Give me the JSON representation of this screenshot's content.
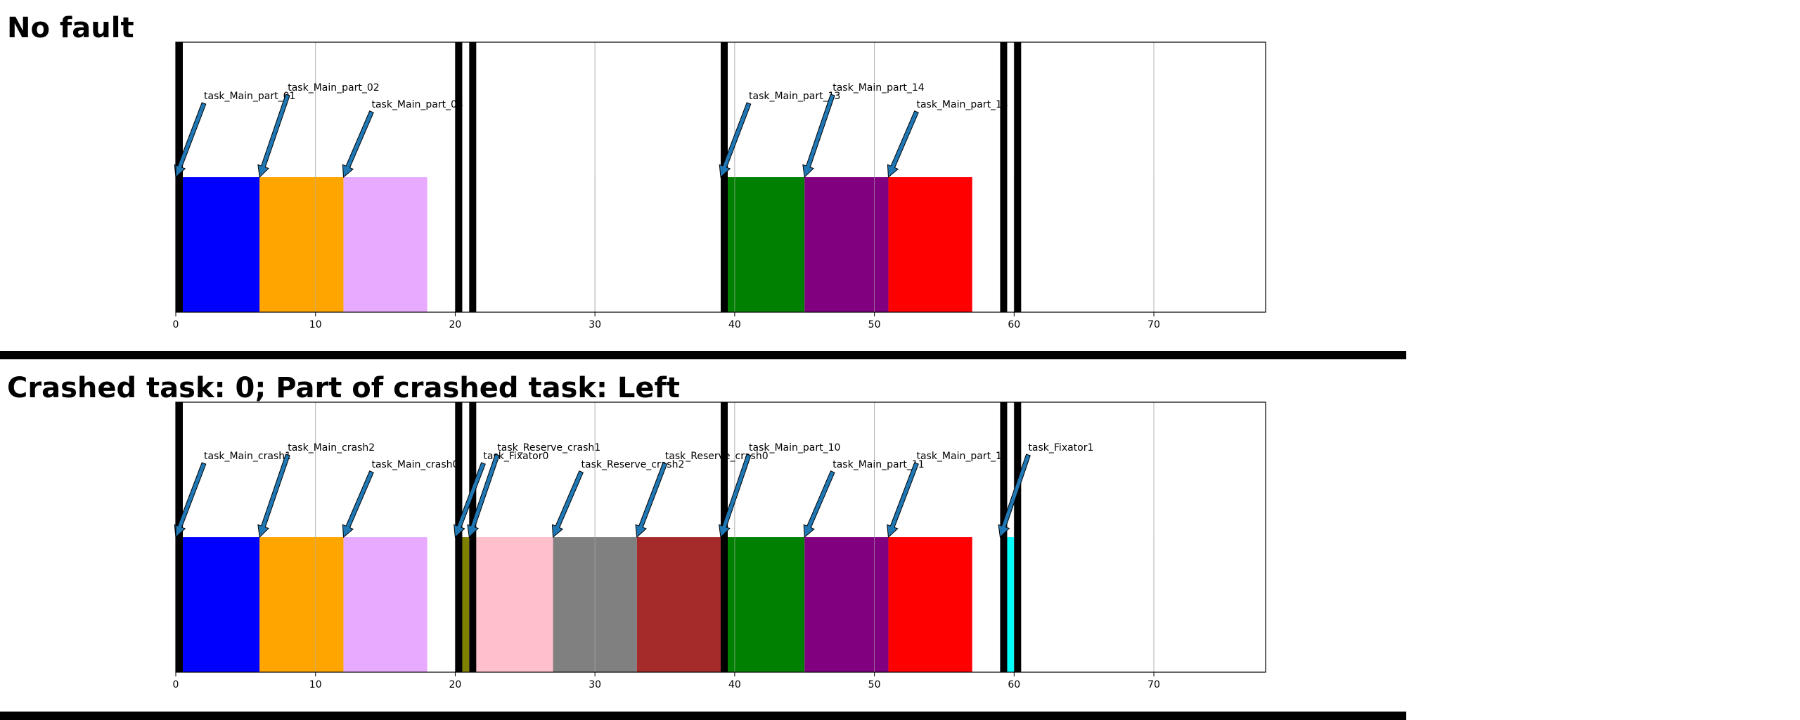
{
  "chart_data": [
    {
      "type": "bar",
      "title": "No fault",
      "xlim": [
        0,
        78
      ],
      "xticks": [
        0,
        10,
        20,
        30,
        40,
        50,
        60,
        70
      ],
      "grid": "vertical",
      "dividers": [
        0,
        20,
        21,
        39,
        59,
        60
      ],
      "tasks": [
        {
          "start": 0,
          "end": 6,
          "color": "#0000ff",
          "label": "task_Main_part_01"
        },
        {
          "start": 6,
          "end": 12,
          "color": "#ffa500",
          "label": "task_Main_part_02"
        },
        {
          "start": 12,
          "end": 18,
          "color": "#e8aaff",
          "label": "task_Main_part_03"
        },
        {
          "start": 39,
          "end": 45,
          "color": "#008000",
          "label": "task_Main_part_13"
        },
        {
          "start": 45,
          "end": 51,
          "color": "#800080",
          "label": "task_Main_part_14"
        },
        {
          "start": 51,
          "end": 57,
          "color": "#ff0000",
          "label": "task_Main_part_15"
        }
      ]
    },
    {
      "type": "bar",
      "title": "Crashed task: 0; Part of crashed task: Left",
      "xlim": [
        0,
        78
      ],
      "xticks": [
        0,
        10,
        20,
        30,
        40,
        50,
        60,
        70
      ],
      "grid": "vertical",
      "dividers": [
        0,
        20,
        21,
        39,
        59,
        60
      ],
      "tasks": [
        {
          "start": 0,
          "end": 6,
          "color": "#0000ff",
          "label": "task_Main_crash1"
        },
        {
          "start": 6,
          "end": 12,
          "color": "#ffa500",
          "label": "task_Main_crash2"
        },
        {
          "start": 12,
          "end": 18,
          "color": "#e8aaff",
          "label": "task_Main_crash0"
        },
        {
          "start": 20,
          "end": 21,
          "color": "#808000",
          "label": "task_Fixator0"
        },
        {
          "start": 21,
          "end": 27,
          "color": "#ffc0cb",
          "label": "task_Reserve_crash1"
        },
        {
          "start": 27,
          "end": 33,
          "color": "#808080",
          "label": "task_Reserve_crash2"
        },
        {
          "start": 33,
          "end": 39,
          "color": "#a52a2a",
          "label": "task_Reserve_crash0"
        },
        {
          "start": 39,
          "end": 45,
          "color": "#008000",
          "label": "task_Main_part_10"
        },
        {
          "start": 45,
          "end": 51,
          "color": "#800080",
          "label": "task_Main_part_11"
        },
        {
          "start": 51,
          "end": 57,
          "color": "#ff0000",
          "label": "task_Main_part_12"
        },
        {
          "start": 59,
          "end": 60,
          "color": "#00ffff",
          "label": "task_Fixator1"
        }
      ]
    }
  ]
}
